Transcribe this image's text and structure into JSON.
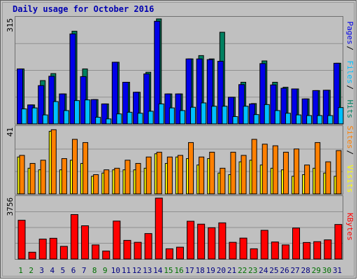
{
  "chart_data": {
    "type": "bar",
    "title": "Daily usage for October 2016",
    "days": [
      "1",
      "2",
      "3",
      "4",
      "5",
      "6",
      "7",
      "8",
      "9",
      "10",
      "11",
      "12",
      "13",
      "14",
      "15",
      "16",
      "17",
      "18",
      "19",
      "20",
      "21",
      "22",
      "23",
      "24",
      "25",
      "26",
      "27",
      "28",
      "29",
      "30",
      "31"
    ],
    "weekend_days": [
      "1",
      "2",
      "8",
      "9",
      "15",
      "16",
      "22",
      "23",
      "29",
      "30"
    ],
    "colors": {
      "pages": "#0000e8",
      "files": "#00c0ff",
      "hits": "#008060",
      "visits": "#ffff00",
      "sites": "#ff8000",
      "kbytes": "#ff0000",
      "day_label": "#000080",
      "weekend_label": "#007000",
      "grid": "#909090",
      "panel_bg": "#c0c0c0"
    },
    "panels": [
      {
        "name": "hits-files-pages",
        "max_label": "315",
        "ymax": 315,
        "series": [
          {
            "name": "Hits",
            "color": "#008060",
            "values": [
              165,
              57,
              130,
              151,
              90,
              278,
              165,
              73,
              60,
              185,
              125,
              95,
              155,
              315,
              90,
              90,
              195,
              205,
              195,
              275,
              80,
              125,
              61,
              189,
              125,
              110,
              105,
              75,
              100,
              101,
              182
            ]
          },
          {
            "name": "Files",
            "color": "#00c0ff",
            "values": [
              45,
              48,
              27,
              67,
              40,
              70,
              72,
              20,
              15,
              30,
              35,
              32,
              38,
              60,
              48,
              40,
              50,
              63,
              53,
              53,
              22,
              53,
              28,
              58,
              40,
              32,
              27,
              25,
              25,
              25,
              49
            ]
          },
          {
            "name": "Pages",
            "color": "#0000e8",
            "values": [
              165,
              57,
              115,
              143,
              90,
              270,
              142,
              73,
              60,
              185,
              125,
              95,
              150,
              308,
              90,
              90,
              195,
              195,
              193,
              188,
              80,
              118,
              60,
              181,
              117,
              107,
              105,
              75,
              100,
              101,
              182
            ]
          }
        ],
        "side_labels": [
          {
            "text": "Pages",
            "color": "#0000e8"
          },
          {
            "text": "Files",
            "color": "#00c0ff"
          },
          {
            "text": "Hits",
            "color": "#008060"
          }
        ]
      },
      {
        "name": "visits-sites",
        "max_label": "41",
        "ymax": 41,
        "series": [
          {
            "name": "Visits",
            "color": "#ffff00",
            "values": [
              23,
              16,
              15,
              39,
              15,
              21,
              19,
              11,
              13,
              15,
              15,
              15,
              16,
              25,
              19,
              23,
              22,
              18,
              22,
              13,
              12,
              20,
              21,
              18,
              16,
              15,
              11,
              12,
              16,
              13,
              11
            ]
          },
          {
            "name": "Sites",
            "color": "#ff8000",
            "values": [
              24,
              19,
              21,
              40,
              22,
              34,
              32,
              12,
              15,
              16,
              21,
              19,
              23,
              26,
              23,
              24,
              32,
              23,
              26,
              16,
              26,
              24,
              34,
              31,
              30,
              26,
              28,
              18,
              32,
              20,
              27
            ]
          }
        ],
        "side_labels": [
          {
            "text": "Sites",
            "color": "#ff8000"
          },
          {
            "text": "Visits",
            "color": "#ffff00"
          }
        ]
      },
      {
        "name": "kbytes",
        "max_label": "3756",
        "ymax": 3756,
        "series": [
          {
            "name": "KBytes",
            "color": "#ff0000",
            "values": [
              2390,
              420,
              1230,
              1280,
              780,
              2740,
              2050,
              870,
              490,
              2340,
              1150,
              1030,
              1570,
              3756,
              630,
              730,
              2330,
              2150,
              1930,
              2230,
              1030,
              1290,
              630,
              1770,
              1050,
              870,
              1910,
              1020,
              1070,
              1180,
              2130
            ]
          }
        ],
        "side_labels": [
          {
            "text": "KBytes",
            "color": "#ff0000"
          }
        ]
      }
    ]
  }
}
